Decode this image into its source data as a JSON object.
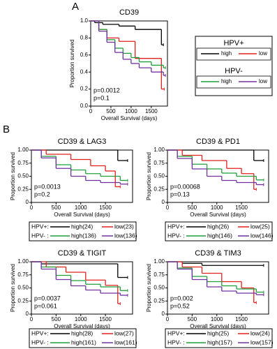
{
  "panel_labels": [
    "A",
    "B"
  ],
  "chart_data": [
    {
      "type": "step",
      "title": "CD39",
      "xlabel": "Overall Survival (days)",
      "ylabel": "Proportion survived",
      "xlim": [
        0,
        1900
      ],
      "xticks": [
        0,
        500,
        1000,
        1500
      ],
      "ylim": [
        0,
        1
      ],
      "yticks": [
        {
          "value": 0,
          "label": "0.0"
        },
        0.2,
        0.4,
        0.6,
        0.8,
        {
          "value": 1,
          "label": "1.0"
        }
      ],
      "legend_groups": [
        {
          "label": "HPV+",
          "color": "#000000"
        },
        {
          "label": "HPV-",
          "color": "#1f9e3a"
        }
      ],
      "series": [
        {
          "name": "high",
          "group": 0,
          "color": "#000000",
          "x": [
            0,
            100,
            300,
            700,
            1100,
            1750,
            1800
          ],
          "values": [
            1,
            0.98,
            0.96,
            0.94,
            0.9,
            0.72,
            0.72
          ]
        },
        {
          "name": "low",
          "group": 0,
          "color": "#e0201b",
          "x": [
            0,
            200,
            400,
            700,
            1100,
            1750,
            1820
          ],
          "values": [
            1,
            0.9,
            0.8,
            0.76,
            0.56,
            0.2,
            0.2
          ]
        },
        {
          "name": "high",
          "group": 1,
          "color": "#1f9e3a",
          "x": [
            0,
            200,
            400,
            600,
            800,
            1000,
            1200,
            1500,
            1800,
            1850
          ],
          "values": [
            1,
            0.9,
            0.78,
            0.68,
            0.62,
            0.57,
            0.52,
            0.48,
            0.45,
            0.45
          ]
        },
        {
          "name": "low",
          "group": 1,
          "color": "#7030a0",
          "x": [
            0,
            200,
            400,
            600,
            800,
            1000,
            1200,
            1500,
            1800,
            1850
          ],
          "values": [
            1,
            0.88,
            0.75,
            0.63,
            0.55,
            0.5,
            0.45,
            0.4,
            0.36,
            0.36
          ]
        }
      ],
      "annotations": [
        {
          "text": "p=0.0012",
          "color": "#000000"
        },
        {
          "text": "p=0.1",
          "color": "#1f9e3a"
        }
      ]
    },
    {
      "type": "step",
      "title": "CD39 & LAG3",
      "xlabel": "Overall Survival (days)",
      "ylabel": "Proportion survived",
      "xlim": [
        0,
        2050
      ],
      "xticks": [
        0,
        500,
        1000,
        1500
      ],
      "ylim": [
        0,
        1
      ],
      "yticks": [
        0,
        0.25,
        {
          "value": 0.5,
          "label": "0.50"
        },
        0.75,
        {
          "value": 1,
          "label": "1.00"
        }
      ],
      "legend_groups": [
        {
          "label": "HPV+:",
          "color": "#000000"
        },
        {
          "label": "HPV- :",
          "color": "#1f9e3a"
        }
      ],
      "series": [
        {
          "name": "high(24)",
          "group": 0,
          "color": "#000000",
          "x": [
            0,
            1750,
            1950
          ],
          "values": [
            1,
            0.8,
            0.8
          ]
        },
        {
          "name": "low(23)",
          "group": 0,
          "color": "#e0201b",
          "x": [
            0,
            300,
            800,
            1200,
            1500,
            1700,
            1800
          ],
          "values": [
            1,
            0.92,
            0.82,
            0.7,
            0.6,
            0.3,
            0.3
          ]
        },
        {
          "name": "high(136)",
          "group": 1,
          "color": "#1f9e3a",
          "x": [
            0,
            200,
            500,
            800,
            1100,
            1400,
            1800,
            1950
          ],
          "values": [
            1,
            0.88,
            0.72,
            0.62,
            0.55,
            0.5,
            0.42,
            0.42
          ]
        },
        {
          "name": "low(136)",
          "group": 1,
          "color": "#7030a0",
          "x": [
            0,
            200,
            500,
            800,
            1100,
            1400,
            1800,
            1950
          ],
          "values": [
            1,
            0.85,
            0.65,
            0.5,
            0.42,
            0.38,
            0.35,
            0.35
          ]
        }
      ],
      "annotations": [
        {
          "text": "p=0.0013",
          "color": "#000000"
        },
        {
          "text": "p=0.2",
          "color": "#1f9e3a"
        }
      ]
    },
    {
      "type": "step",
      "title": "CD39 & PD1",
      "xlabel": "Overall Survival (days)",
      "ylabel": "Proportion survived",
      "xlim": [
        0,
        2050
      ],
      "xticks": [
        0,
        500,
        1000,
        1500
      ],
      "ylim": [
        0,
        1
      ],
      "yticks": [
        0,
        0.25,
        {
          "value": 0.5,
          "label": "0.50"
        },
        0.75,
        {
          "value": 1,
          "label": "1.00"
        }
      ],
      "legend_groups": [
        {
          "label": "HPV+:",
          "color": "#000000"
        },
        {
          "label": "HPV- :",
          "color": "#1f9e3a"
        }
      ],
      "series": [
        {
          "name": "high(26)",
          "group": 0,
          "color": "#000000",
          "x": [
            0,
            1750,
            1950
          ],
          "values": [
            1,
            0.8,
            0.8
          ]
        },
        {
          "name": "low(25)",
          "group": 0,
          "color": "#e0201b",
          "x": [
            0,
            300,
            700,
            1200,
            1500,
            1750,
            1800
          ],
          "values": [
            1,
            0.9,
            0.8,
            0.65,
            0.55,
            0.25,
            0.25
          ]
        },
        {
          "name": "high(146)",
          "group": 1,
          "color": "#1f9e3a",
          "x": [
            0,
            200,
            500,
            800,
            1100,
            1400,
            1800,
            1950
          ],
          "values": [
            1,
            0.88,
            0.73,
            0.64,
            0.56,
            0.5,
            0.43,
            0.43
          ]
        },
        {
          "name": "low(146)",
          "group": 1,
          "color": "#7030a0",
          "x": [
            0,
            200,
            500,
            800,
            1100,
            1400,
            1800,
            1950
          ],
          "values": [
            1,
            0.84,
            0.64,
            0.5,
            0.42,
            0.38,
            0.34,
            0.34
          ]
        }
      ],
      "annotations": [
        {
          "text": "p=0.00068",
          "color": "#000000"
        },
        {
          "text": "p=0.13",
          "color": "#1f9e3a"
        }
      ]
    },
    {
      "type": "step",
      "title": "CD39 & TIGIT",
      "xlabel": "Overall Survival (days)",
      "ylabel": "Proportion survived",
      "xlim": [
        0,
        2050
      ],
      "xticks": [
        0,
        500,
        1000,
        1500
      ],
      "ylim": [
        0,
        1
      ],
      "yticks": [
        0,
        0.25,
        {
          "value": 0.5,
          "label": "0.50"
        },
        0.75,
        {
          "value": 1,
          "label": "1.00"
        }
      ],
      "legend_groups": [
        {
          "label": "HPV+:",
          "color": "#000000"
        },
        {
          "label": "HPV- :",
          "color": "#1f9e3a"
        }
      ],
      "series": [
        {
          "name": "high(28)",
          "group": 0,
          "color": "#000000",
          "x": [
            0,
            200,
            1750,
            1950
          ],
          "values": [
            1,
            0.96,
            0.7,
            0.7
          ]
        },
        {
          "name": "low(27)",
          "group": 0,
          "color": "#e0201b",
          "x": [
            0,
            300,
            700,
            1100,
            1500,
            1750,
            1800
          ],
          "values": [
            1,
            0.9,
            0.8,
            0.65,
            0.55,
            0.2,
            0.2
          ]
        },
        {
          "name": "high(161)",
          "group": 1,
          "color": "#1f9e3a",
          "x": [
            0,
            200,
            500,
            800,
            1100,
            1400,
            1800,
            1950
          ],
          "values": [
            1,
            0.9,
            0.74,
            0.64,
            0.57,
            0.52,
            0.45,
            0.45
          ]
        },
        {
          "name": "low(161)",
          "group": 1,
          "color": "#7030a0",
          "x": [
            0,
            200,
            500,
            800,
            1100,
            1400,
            1800,
            1950
          ],
          "values": [
            1,
            0.86,
            0.66,
            0.54,
            0.46,
            0.4,
            0.36,
            0.36
          ]
        }
      ],
      "annotations": [
        {
          "text": "p=0.0037",
          "color": "#000000"
        },
        {
          "text": "p=0.061",
          "color": "#1f9e3a"
        }
      ]
    },
    {
      "type": "step",
      "title": "CD39 & TIM3",
      "xlabel": "Overall Survival (days)",
      "ylabel": "Proportion survived",
      "xlim": [
        0,
        2050
      ],
      "xticks": [
        0,
        500,
        1000,
        1500
      ],
      "ylim": [
        0,
        1
      ],
      "yticks": [
        0,
        0.25,
        {
          "value": 0.5,
          "label": "0.50"
        },
        0.75,
        {
          "value": 1,
          "label": "1.00"
        }
      ],
      "legend_groups": [
        {
          "label": "HPV+:",
          "color": "#000000"
        },
        {
          "label": "HPV- :",
          "color": "#1f9e3a"
        }
      ],
      "series": [
        {
          "name": "high(25)",
          "group": 0,
          "color": "#000000",
          "x": [
            0,
            300,
            700,
            1950
          ],
          "values": [
            1,
            0.97,
            0.93,
            0.93
          ]
        },
        {
          "name": "low(24)",
          "group": 0,
          "color": "#e0201b",
          "x": [
            0,
            300,
            700,
            1100,
            1500,
            1750,
            1800
          ],
          "values": [
            1,
            0.9,
            0.78,
            0.62,
            0.5,
            0.22,
            0.22
          ]
        },
        {
          "name": "high(157)",
          "group": 1,
          "color": "#1f9e3a",
          "x": [
            0,
            200,
            500,
            800,
            1100,
            1400,
            1800,
            1950
          ],
          "values": [
            1,
            0.88,
            0.72,
            0.62,
            0.54,
            0.48,
            0.42,
            0.42
          ]
        },
        {
          "name": "low(157)",
          "group": 1,
          "color": "#7030a0",
          "x": [
            0,
            200,
            500,
            800,
            1100,
            1400,
            1800,
            1950
          ],
          "values": [
            1,
            0.86,
            0.66,
            0.52,
            0.44,
            0.4,
            0.37,
            0.37
          ]
        }
      ],
      "annotations": [
        {
          "text": "p=0.002",
          "color": "#000000"
        },
        {
          "text": "p=0.52",
          "color": "#1f9e3a"
        }
      ]
    }
  ]
}
